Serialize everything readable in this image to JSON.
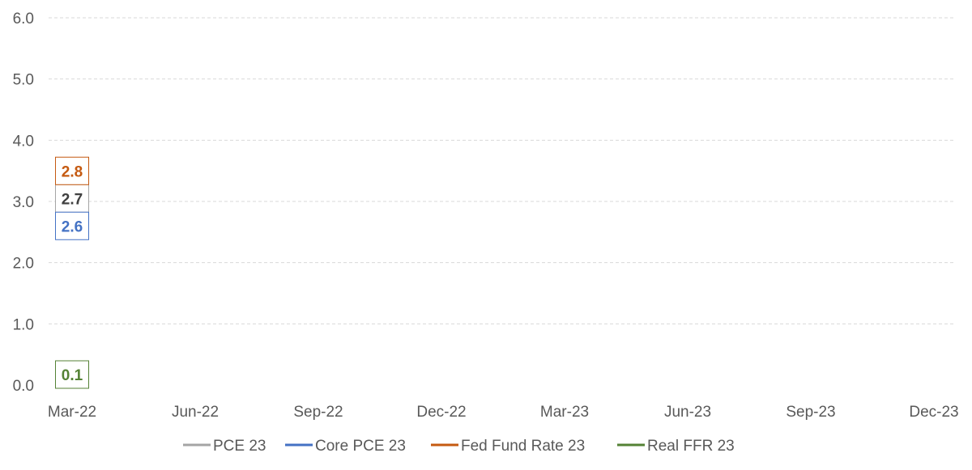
{
  "chart_data": {
    "type": "line",
    "x_categories": [
      "Mar-22",
      "Jun-22",
      "Sep-22",
      "Dec-22",
      "Mar-23",
      "Jun-23",
      "Sep-23",
      "Dec-23"
    ],
    "y_ticks": [
      "0.0",
      "1.0",
      "2.0",
      "3.0",
      "4.0",
      "5.0",
      "6.0"
    ],
    "ylim": [
      0,
      6
    ],
    "grid": true,
    "legend_position": "bottom",
    "series": [
      {
        "name": "PCE 23",
        "color": "#a5a5a5",
        "label_color": "#404040",
        "points": [
          {
            "x": "Mar-22",
            "y": 2.7,
            "label": "2.7"
          }
        ]
      },
      {
        "name": "Core PCE 23",
        "color": "#4472c4",
        "label_color": "#4472c4",
        "points": [
          {
            "x": "Mar-22",
            "y": 2.6,
            "label": "2.6"
          }
        ]
      },
      {
        "name": "Fed Fund Rate 23",
        "color": "#c55a11",
        "label_color": "#c55a11",
        "points": [
          {
            "x": "Mar-22",
            "y": 2.8,
            "label": "2.8"
          }
        ]
      },
      {
        "name": "Real FFR 23",
        "color": "#548235",
        "label_color": "#548235",
        "points": [
          {
            "x": "Mar-22",
            "y": 0.1,
            "label": "0.1"
          }
        ]
      }
    ]
  }
}
